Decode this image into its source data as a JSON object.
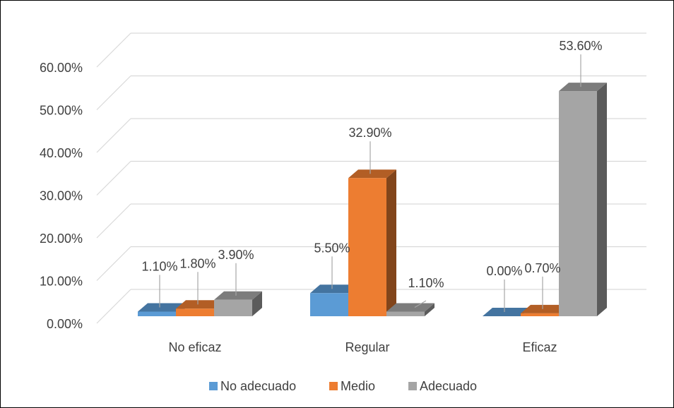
{
  "chart_data": {
    "type": "bar",
    "style": "3d-clustered-column",
    "categories": [
      "No eficaz",
      "Regular",
      "Eficaz"
    ],
    "series": [
      {
        "name": "No adecuado",
        "color": "#5B9BD5",
        "values": [
          1.1,
          5.5,
          0.0
        ],
        "labels": [
          "1.10%",
          "5.50%",
          "0.00%"
        ]
      },
      {
        "name": "Medio",
        "color": "#ED7D31",
        "values": [
          1.8,
          32.9,
          0.7
        ],
        "labels": [
          "1.80%",
          "32.90%",
          "0.70%"
        ]
      },
      {
        "name": "Adecuado",
        "color": "#A5A5A5",
        "values": [
          3.9,
          1.1,
          53.6
        ],
        "labels": [
          "3.90%",
          "1.10%",
          "53.60%"
        ]
      }
    ],
    "y_ticks": [
      0,
      10,
      20,
      30,
      40,
      50,
      60
    ],
    "y_tick_labels": [
      "0.00%",
      "10.00%",
      "20.00%",
      "30.00%",
      "40.00%",
      "50.00%",
      "60.00%"
    ],
    "ylim": [
      0,
      60
    ],
    "grid": true,
    "legend_position": "bottom"
  }
}
